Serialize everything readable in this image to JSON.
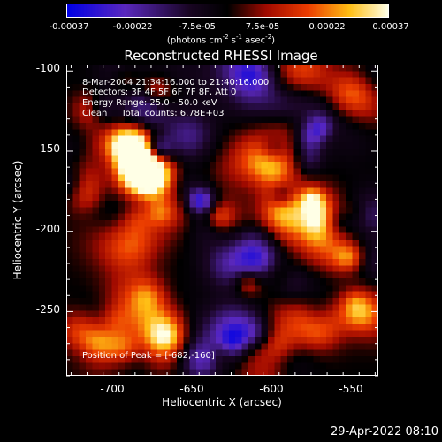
{
  "colorbar": {
    "ticks": [
      "-0.00037",
      "-0.00022",
      "-7.5e-05",
      "7.5e-05",
      "0.00022",
      "0.00037"
    ],
    "units_prefix": "(photons cm",
    "units_sup1": "-2",
    "units_mid1": " s",
    "units_sup2": "-1",
    "units_mid2": " asec",
    "units_sup3": "-2",
    "units_suffix": ")"
  },
  "title": "Reconstructed RHESSI Image",
  "info": {
    "time_range": "8-Mar-2004 21:34:16.000 to 21:40:16.000",
    "detectors": "Detectors: 3F 4F 5F 6F 7F 8F, Att 0",
    "energy_range": "Energy Range: 25.0 - 50.0 keV",
    "algorithm": "Clean     Total counts: 6.78E+03",
    "peak": "Position of Peak = [-682,-160]"
  },
  "axes": {
    "xlabel": "Heliocentric X (arcsec)",
    "ylabel": "Heliocentric Y (arcsec)",
    "xticks": [
      "-700",
      "-650",
      "-600",
      "-550"
    ],
    "yticks": [
      "-100",
      "-150",
      "-200",
      "-250"
    ],
    "xlim": [
      -728,
      -533
    ],
    "ylim": [
      -290,
      -96
    ]
  },
  "image": {
    "colormap": "blue-black-red-yellow-white",
    "peak_x": -682,
    "peak_y": -160
  },
  "footer": {
    "date": "29-Apr-2022 08:10"
  }
}
